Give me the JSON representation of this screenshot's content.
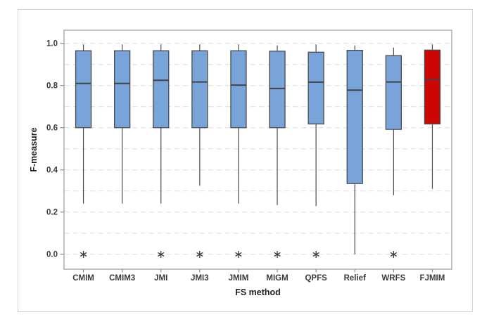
{
  "figure": {
    "background": "#ffffff",
    "border_color": "#d6d6d6"
  },
  "chart_data": {
    "type": "boxplot",
    "title": "",
    "xlabel": "FS method",
    "ylabel": "F-measure",
    "ylim": [
      0.0,
      1.0
    ],
    "y_tick_values": [
      0.0,
      0.2,
      0.4,
      0.6,
      0.8,
      1.0
    ],
    "y_tick_labels": [
      "0.0",
      "0.2",
      "0.4",
      "0.6",
      "0.8",
      "1.0"
    ],
    "gridline_values": [
      0.0,
      0.1,
      0.2,
      0.3,
      0.4,
      0.5,
      0.6,
      0.7,
      0.8,
      0.9,
      1.0
    ],
    "grid": "horizontal-dashed",
    "legend": "none",
    "outlier_symbol": "∗",
    "categories": [
      "CMIM",
      "CMIM3",
      "JMI",
      "JMI3",
      "JMIM",
      "MIGM",
      "QPFS",
      "Relief",
      "WRFS",
      "FJMIM"
    ],
    "series": [
      {
        "name": "CMIM",
        "whisker_low": 0.24,
        "q1": 0.6,
        "median": 0.81,
        "q3": 0.965,
        "whisker_high": 0.995,
        "outliers": [
          0.0
        ],
        "highlight": false
      },
      {
        "name": "CMIM3",
        "whisker_low": 0.24,
        "q1": 0.6,
        "median": 0.81,
        "q3": 0.965,
        "whisker_high": 0.995,
        "outliers": [],
        "highlight": false
      },
      {
        "name": "JMI",
        "whisker_low": 0.24,
        "q1": 0.6,
        "median": 0.825,
        "q3": 0.965,
        "whisker_high": 0.995,
        "outliers": [
          0.0
        ],
        "highlight": false
      },
      {
        "name": "JMI3",
        "whisker_low": 0.325,
        "q1": 0.6,
        "median": 0.817,
        "q3": 0.965,
        "whisker_high": 0.995,
        "outliers": [
          0.0
        ],
        "highlight": false
      },
      {
        "name": "JMIM",
        "whisker_low": 0.24,
        "q1": 0.6,
        "median": 0.802,
        "q3": 0.965,
        "whisker_high": 0.995,
        "outliers": [
          0.0
        ],
        "highlight": false
      },
      {
        "name": "MIGM",
        "whisker_low": 0.233,
        "q1": 0.6,
        "median": 0.786,
        "q3": 0.963,
        "whisker_high": 0.99,
        "outliers": [
          0.0
        ],
        "highlight": false
      },
      {
        "name": "QPFS",
        "whisker_low": 0.228,
        "q1": 0.618,
        "median": 0.816,
        "q3": 0.958,
        "whisker_high": 0.995,
        "outliers": [
          0.0
        ],
        "highlight": false
      },
      {
        "name": "Relief",
        "whisker_low": 0.0,
        "q1": 0.335,
        "median": 0.778,
        "q3": 0.967,
        "whisker_high": 0.99,
        "outliers": [],
        "highlight": false
      },
      {
        "name": "WRFS",
        "whisker_low": 0.28,
        "q1": 0.592,
        "median": 0.817,
        "q3": 0.942,
        "whisker_high": 0.98,
        "outliers": [
          0.0
        ],
        "highlight": false
      },
      {
        "name": "FJMIM",
        "whisker_low": 0.31,
        "q1": 0.618,
        "median": 0.828,
        "q3": 0.968,
        "whisker_high": 0.995,
        "outliers": [],
        "highlight": true
      }
    ],
    "colors": {
      "box_fill": "#78a4da",
      "highlight_fill": "#cc0505",
      "box_border": "#4a4a4a",
      "median_line": "#434343",
      "whisker": "#4a4a4a",
      "gridline": "#dcdcdc",
      "plot_border": "#9a9a9a",
      "tick": "#8c8c8c",
      "tick_text": "#3b3b3b",
      "outlier": "#3a3a3a"
    }
  }
}
